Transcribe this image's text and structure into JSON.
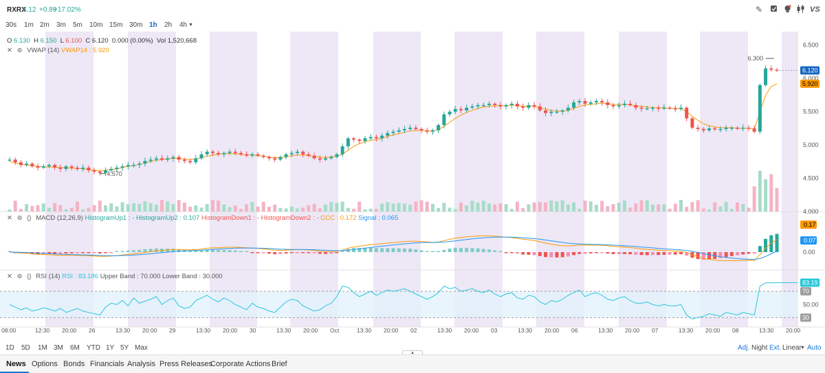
{
  "header": {
    "ticker": "RXRX",
    "last": "6.12",
    "change": "+0.89",
    "change_pct": "+17.02%",
    "icons": [
      "pencil-icon",
      "checkbox-icon",
      "ideas-icon",
      "candles-icon",
      "vs-icon"
    ],
    "vs_label": "VS"
  },
  "timeframes": [
    "30s",
    "1m",
    "2m",
    "3m",
    "5m",
    "10m",
    "15m",
    "30m",
    "1h",
    "2h",
    "4h"
  ],
  "timeframe_active": "1h",
  "timeframe_dropdown_icon": "caret-down-icon",
  "ohlc": {
    "o_label": "O",
    "o": "6.130",
    "h_label": "H",
    "h": "6.150",
    "l_label": "L",
    "l": "6.100",
    "c_label": "C",
    "c": "6.120",
    "change": "0.000 (0.00%)",
    "vol_label": "Vol",
    "vol": "1,520,668"
  },
  "vwap": {
    "name": "VWAP (14)",
    "value_label": "VWAP14 : 5.920"
  },
  "macd": {
    "name": "MACD (12,26,9)",
    "hu1": "HistogramUp1 : -",
    "hu2": "HistogramUp2 : 0.107",
    "hd1": "HistogramDown1 : -",
    "hd2": "HistogramDown2 : -",
    "ccc": "CCC : 0.172",
    "signal": "Signal : 0.065"
  },
  "rsi": {
    "name": "RSI (14)",
    "value_label": "RSI : 83.186",
    "upper": "Upper Band : 70.000",
    "lower": "Lower Band : 30.000"
  },
  "price_axis": {
    "ticks": [
      "6.500",
      "6.000",
      "5.500",
      "5.000",
      "4.500",
      "4.000"
    ],
    "last_badge": "6.120",
    "vwap_badge": "5.920",
    "high_label": "6.300",
    "low_label": "4.570"
  },
  "macd_axis": {
    "ticks": [
      "0.00"
    ],
    "badge_ccc": "0.17",
    "badge_signal": "0.07"
  },
  "rsi_axis": {
    "ticks": [
      "70",
      "50.00",
      "30"
    ],
    "badge": "83.19"
  },
  "time_axis": [
    "08:00",
    "12:30",
    "20:00",
    "26",
    "13:30",
    "20:00",
    "29",
    "13:30",
    "20:00",
    "30",
    "13:30",
    "20:00",
    "Oct",
    "13:30",
    "20:00",
    "02",
    "13:30",
    "20:00",
    "03",
    "13:30",
    "20:00",
    "06",
    "13:30",
    "20:00",
    "07",
    "13:30",
    "20:00",
    "08",
    "13:30",
    "20:00"
  ],
  "ranges": [
    "1D",
    "5D",
    "1M",
    "3M",
    "6M",
    "YTD",
    "1Y",
    "5Y",
    "Max"
  ],
  "options": {
    "adj": "Adj.",
    "night": "Night",
    "ext": "Ext.",
    "scale": "Linear",
    "auto": "Auto"
  },
  "tabs": [
    "News",
    "Options",
    "Bonds",
    "Financials",
    "Analysis",
    "Press Releases",
    "Corporate Actions",
    "Brief"
  ],
  "tab_active": "News",
  "colors": {
    "up": "#26a69a",
    "down": "#ef5350",
    "vwap": "#ff9800",
    "macd": "#2196f3",
    "rsi": "#26c6da",
    "shade": "#ede7f6",
    "accent": "#1565c0"
  },
  "chart_data": {
    "type": "candlestick",
    "interval": "1h",
    "price_range": [
      4.0,
      6.6
    ],
    "closes": [
      4.78,
      4.74,
      4.7,
      4.72,
      4.68,
      4.66,
      4.68,
      4.7,
      4.66,
      4.64,
      4.68,
      4.66,
      4.64,
      4.66,
      4.62,
      4.6,
      4.58,
      4.62,
      4.64,
      4.66,
      4.68,
      4.7,
      4.7,
      4.72,
      4.76,
      4.78,
      4.8,
      4.78,
      4.8,
      4.82,
      4.78,
      4.76,
      4.74,
      4.8,
      4.86,
      4.9,
      4.88,
      4.86,
      4.88,
      4.9,
      4.88,
      4.86,
      4.84,
      4.86,
      4.84,
      4.82,
      4.8,
      4.78,
      4.82,
      4.86,
      4.88,
      4.9,
      4.86,
      4.84,
      4.8,
      4.78,
      4.8,
      4.82,
      4.86,
      4.98,
      5.1,
      5.08,
      5.06,
      5.1,
      5.12,
      5.1,
      5.14,
      5.18,
      5.2,
      5.22,
      5.24,
      5.26,
      5.24,
      5.22,
      5.2,
      5.22,
      5.3,
      5.46,
      5.5,
      5.54,
      5.52,
      5.56,
      5.58,
      5.6,
      5.6,
      5.62,
      5.6,
      5.58,
      5.6,
      5.62,
      5.58,
      5.56,
      5.6,
      5.58,
      5.52,
      5.48,
      5.5,
      5.5,
      5.52,
      5.56,
      5.64,
      5.66,
      5.62,
      5.64,
      5.66,
      5.64,
      5.6,
      5.58,
      5.6,
      5.62,
      5.6,
      5.56,
      5.55,
      5.55,
      5.56,
      5.55,
      5.56,
      5.55,
      5.54,
      5.56,
      5.4,
      5.26,
      5.24,
      5.22,
      5.25,
      5.24,
      5.24,
      5.26,
      5.26,
      5.25,
      5.26,
      5.25,
      5.2,
      5.9,
      6.15,
      6.13,
      6.12
    ],
    "vwap": [
      4.75,
      4.73,
      4.71,
      4.7,
      4.69,
      4.68,
      4.67,
      4.67,
      4.67,
      4.66,
      4.66,
      4.65,
      4.65,
      4.64,
      4.63,
      4.62,
      4.61,
      4.62,
      4.63,
      4.64,
      4.66,
      4.68,
      4.69,
      4.71,
      4.73,
      4.75,
      4.77,
      4.78,
      4.79,
      4.8,
      4.8,
      4.79,
      4.78,
      4.79,
      4.81,
      4.83,
      4.85,
      4.86,
      4.87,
      4.87,
      4.87,
      4.86,
      4.85,
      4.85,
      4.84,
      4.83,
      4.82,
      4.81,
      4.81,
      4.82,
      4.84,
      4.85,
      4.85,
      4.84,
      4.83,
      4.82,
      4.81,
      4.82,
      4.83,
      4.86,
      4.92,
      4.98,
      5.02,
      5.05,
      5.07,
      5.08,
      5.1,
      5.13,
      5.15,
      5.17,
      5.19,
      5.21,
      5.22,
      5.22,
      5.21,
      5.21,
      5.23,
      5.28,
      5.34,
      5.4,
      5.45,
      5.49,
      5.52,
      5.55,
      5.57,
      5.58,
      5.59,
      5.59,
      5.59,
      5.6,
      5.59,
      5.58,
      5.58,
      5.58,
      5.56,
      5.54,
      5.52,
      5.51,
      5.51,
      5.52,
      5.55,
      5.58,
      5.6,
      5.61,
      5.62,
      5.63,
      5.62,
      5.61,
      5.61,
      5.61,
      5.6,
      5.59,
      5.58,
      5.57,
      5.56,
      5.56,
      5.56,
      5.55,
      5.55,
      5.55,
      5.5,
      5.43,
      5.37,
      5.32,
      5.29,
      5.27,
      5.26,
      5.26,
      5.26,
      5.25,
      5.25,
      5.25,
      5.24,
      5.5,
      5.75,
      5.88,
      5.92
    ],
    "rsi": [
      50,
      46,
      42,
      45,
      40,
      42,
      45,
      43,
      40,
      44,
      38,
      41,
      44,
      40,
      38,
      36,
      34,
      46,
      52,
      50,
      56,
      48,
      60,
      52,
      55,
      58,
      62,
      50,
      56,
      60,
      48,
      44,
      46,
      56,
      60,
      64,
      58,
      54,
      60,
      56,
      50,
      46,
      42,
      52,
      46,
      44,
      40,
      38,
      46,
      54,
      58,
      56,
      48,
      44,
      40,
      42,
      48,
      52,
      62,
      78,
      76,
      68,
      62,
      66,
      70,
      64,
      68,
      72,
      70,
      72,
      74,
      70,
      66,
      62,
      58,
      62,
      68,
      78,
      74,
      76,
      70,
      72,
      74,
      70,
      68,
      72,
      66,
      62,
      66,
      68,
      60,
      58,
      64,
      62,
      54,
      50,
      56,
      54,
      58,
      64,
      68,
      72,
      62,
      66,
      68,
      64,
      58,
      56,
      60,
      62,
      56,
      52,
      52,
      54,
      50,
      48,
      50,
      48,
      48,
      50,
      34,
      28,
      30,
      32,
      36,
      34,
      32,
      38,
      36,
      34,
      38,
      36,
      34,
      78,
      83,
      83,
      83
    ],
    "rsi_bands": {
      "upper": 70,
      "lower": 30
    },
    "macd_signal_last": 0.065,
    "macd_ccc_last": 0.172,
    "macd_hist_last": 0.107
  }
}
